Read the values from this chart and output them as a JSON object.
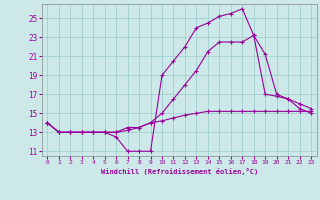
{
  "xlabel": "Windchill (Refroidissement éolien,°C)",
  "xlim": [
    -0.5,
    23.5
  ],
  "ylim": [
    10.5,
    26.5
  ],
  "yticks": [
    11,
    13,
    15,
    17,
    19,
    21,
    23,
    25
  ],
  "xticks": [
    0,
    1,
    2,
    3,
    4,
    5,
    6,
    7,
    8,
    9,
    10,
    11,
    12,
    13,
    14,
    15,
    16,
    17,
    18,
    19,
    20,
    21,
    22,
    23
  ],
  "bg_color": "#cce8e8",
  "line_color": "#990099",
  "grid_color": "#99cccc",
  "lines": [
    {
      "x": [
        0,
        1,
        2,
        3,
        4,
        5,
        6,
        7,
        8,
        9,
        10,
        11,
        12,
        13,
        14,
        15,
        16,
        17,
        18,
        19,
        20,
        21,
        22,
        23
      ],
      "y": [
        14,
        13,
        13,
        13,
        13,
        13,
        12.5,
        11,
        11,
        11,
        19,
        20.5,
        22,
        24,
        24.5,
        25.2,
        25.5,
        26,
        23.2,
        17,
        16.8,
        16.5,
        15.5,
        15
      ]
    },
    {
      "x": [
        0,
        1,
        2,
        3,
        4,
        5,
        6,
        7,
        8,
        9,
        10,
        11,
        12,
        13,
        14,
        15,
        16,
        17,
        18,
        19,
        20,
        21,
        22,
        23
      ],
      "y": [
        14,
        13,
        13,
        13,
        13,
        13,
        13,
        13.5,
        13.5,
        14,
        15,
        16.5,
        18,
        19.5,
        21.5,
        22.5,
        22.5,
        22.5,
        23.2,
        21.2,
        17,
        16.5,
        16,
        15.5
      ]
    },
    {
      "x": [
        0,
        1,
        2,
        3,
        4,
        5,
        6,
        7,
        8,
        9,
        10,
        11,
        12,
        13,
        14,
        15,
        16,
        17,
        18,
        19,
        20,
        21,
        22,
        23
      ],
      "y": [
        14,
        13,
        13,
        13,
        13,
        13,
        13,
        13.2,
        13.5,
        14,
        14.2,
        14.5,
        14.8,
        15,
        15.2,
        15.2,
        15.2,
        15.2,
        15.2,
        15.2,
        15.2,
        15.2,
        15.2,
        15.2
      ]
    }
  ]
}
